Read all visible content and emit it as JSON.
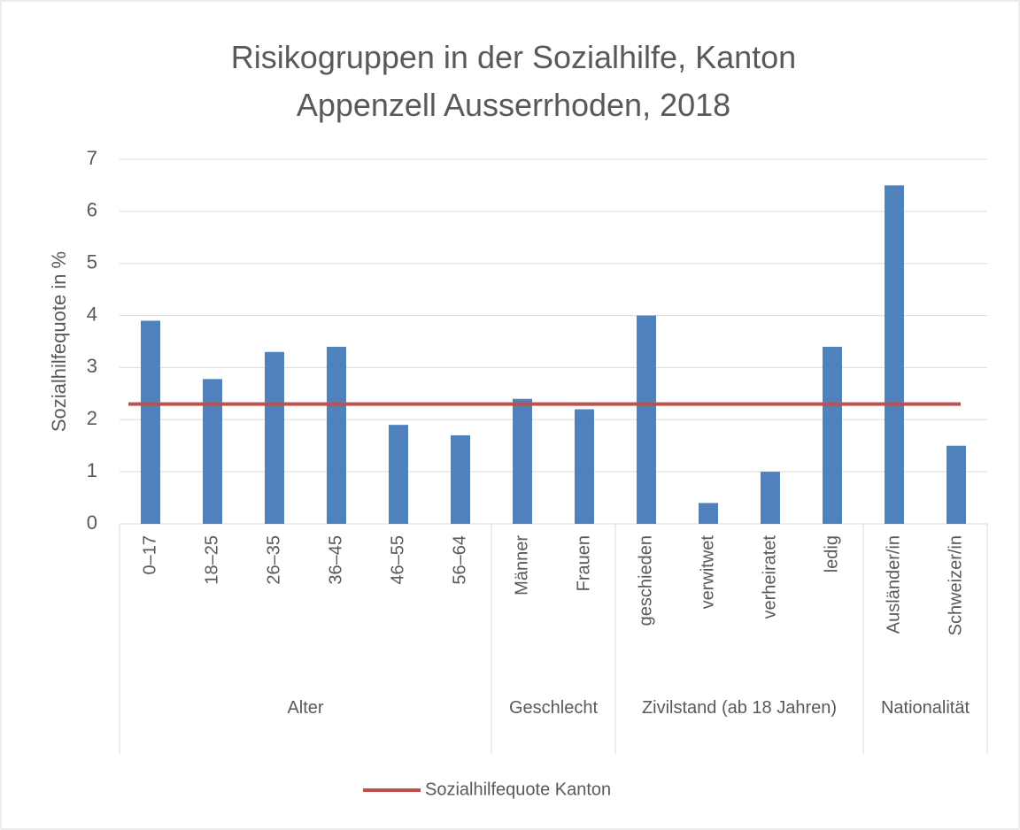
{
  "chart_data": {
    "type": "bar",
    "title": "Risikogruppen in der Sozialhilfe, Kanton Appenzell Ausserrhoden, 2018",
    "ylabel": "Sozialhilfequote in %",
    "categories": [
      "0–17",
      "18–25",
      "26–35",
      "36–45",
      "46–55",
      "56–64",
      "Männer",
      "Frauen",
      "geschieden",
      "verwitwet",
      "verheiratet",
      "ledig",
      "Ausländer/in",
      "Schweizer/in"
    ],
    "values": [
      3.9,
      2.78,
      3.3,
      3.4,
      1.9,
      1.7,
      2.4,
      2.2,
      4.0,
      0.4,
      1.0,
      3.4,
      6.5,
      1.5
    ],
    "color": "#4f81bd",
    "groups": [
      {
        "label": "Alter",
        "count": 6
      },
      {
        "label": "Geschlecht",
        "count": 2
      },
      {
        "label": "Zivilstand (ab 18 Jahren)",
        "count": 4
      },
      {
        "label": "Nationalität",
        "count": 2
      }
    ],
    "reference_line": {
      "name": "Sozialhilfequote Kanton",
      "value": 2.3,
      "color": "#c0504d"
    },
    "ylim": [
      0,
      7
    ],
    "yticks": [
      0,
      1,
      2,
      3,
      4,
      5,
      6,
      7
    ],
    "grid": true,
    "legend": "bottom"
  }
}
